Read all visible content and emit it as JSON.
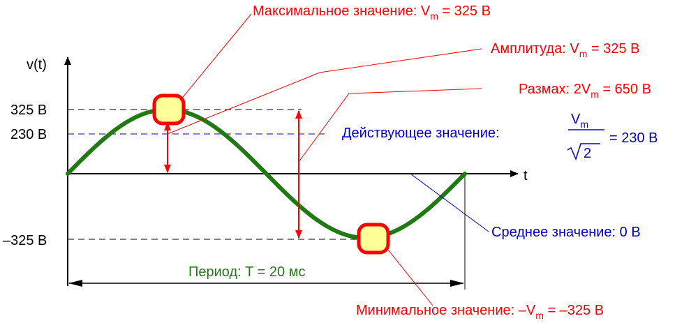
{
  "axes": {
    "y_label": "v(t)",
    "x_label": "t",
    "ticks": {
      "max": "325 В",
      "rms": "230 В",
      "min": "–325 В"
    }
  },
  "waveform": {
    "kind": "sine",
    "cycles": 1,
    "amplitude_v": 325,
    "rms_v": 230,
    "period_ms": 20
  },
  "annotations": {
    "max_value": {
      "text": "Максимальное значение: V",
      "sub": "m",
      "rest": " = 325 В"
    },
    "amplitude": {
      "text": "Амплитуда: V",
      "sub": "m",
      "rest": " = 325 В"
    },
    "peak_to_peak": {
      "text": "Размах: 2V",
      "sub": "m",
      "rest": " = 650 В"
    },
    "rms": {
      "text": "Действующее значение:",
      "num": "V",
      "num_sub": "m",
      "den": "2",
      "rest": "= 230 В"
    },
    "mean": {
      "text": "Среднее значение: 0 В"
    },
    "period": {
      "text": "Период: T = 20 мс"
    },
    "min_value": {
      "text": "Минимальное значение: –V",
      "sub": "m",
      "rest": " = –325 В"
    }
  },
  "colors": {
    "wave": "#1f7a12",
    "red": "#ff0000",
    "blue": "#0000cc",
    "axis": "#000000",
    "marker_fill": "#ffff99",
    "period_text": "#1f7a12"
  }
}
